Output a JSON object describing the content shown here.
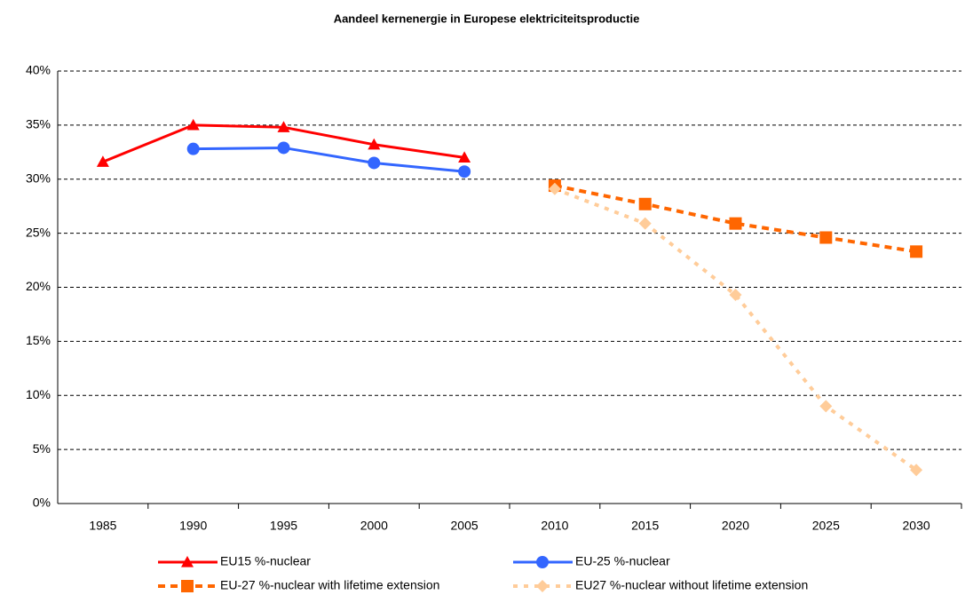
{
  "chart_data": {
    "type": "line",
    "title": "Aandeel kernenergie in Europese elektriciteitsproductie",
    "categories": [
      "1985",
      "1990",
      "1995",
      "2000",
      "2005",
      "2010",
      "2015",
      "2020",
      "2025",
      "2030"
    ],
    "series": [
      {
        "name": "EU15 %-nuclear",
        "color": "#ff0000",
        "marker": "triangle",
        "dash": "solid",
        "values": [
          31.6,
          35.0,
          34.8,
          33.2,
          32.0,
          null,
          null,
          null,
          null,
          null
        ]
      },
      {
        "name": "EU-25 %-nuclear",
        "color": "#3366ff",
        "marker": "circle",
        "dash": "solid",
        "values": [
          null,
          32.8,
          32.9,
          31.5,
          30.7,
          null,
          null,
          null,
          null,
          null
        ]
      },
      {
        "name": "EU-27 %-nuclear with lifetime extension",
        "color": "#ff6600",
        "marker": "square",
        "dash": "dashed",
        "values": [
          null,
          null,
          null,
          null,
          null,
          29.4,
          27.7,
          25.9,
          24.6,
          23.3
        ]
      },
      {
        "name": "EU27 %-nuclear without lifetime extension",
        "color": "#ffcc99",
        "marker": "diamond",
        "dash": "dotted",
        "values": [
          null,
          null,
          null,
          null,
          null,
          29.1,
          25.9,
          19.3,
          9.0,
          3.1
        ]
      }
    ],
    "ylim": [
      0,
      40
    ],
    "yticks": [
      {
        "value": 0,
        "label": "0%"
      },
      {
        "value": 5,
        "label": "5%"
      },
      {
        "value": 10,
        "label": "10%"
      },
      {
        "value": 15,
        "label": "15%"
      },
      {
        "value": 20,
        "label": "20%"
      },
      {
        "value": 25,
        "label": "25%"
      },
      {
        "value": 30,
        "label": "30%"
      },
      {
        "value": 35,
        "label": "35%"
      },
      {
        "value": 40,
        "label": "40%"
      }
    ],
    "grid": true
  }
}
